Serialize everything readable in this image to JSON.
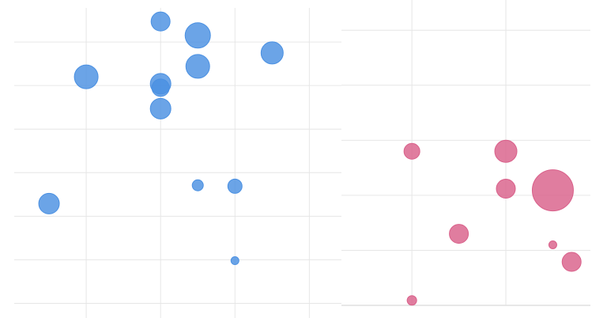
{
  "chart_data": [
    {
      "type": "scatter",
      "x": [
        2,
        2.5,
        3.5,
        1,
        2,
        2,
        2.5,
        2,
        2.5,
        3,
        0.5,
        3
      ],
      "series": [
        {
          "color": "#4a90e2",
          "values": [
            6.47,
            6.15,
            5.75,
            5.2,
            5.04,
            4.95,
            5.44,
            4.47,
            2.71,
            2.69,
            2.29,
            0.98
          ],
          "sizes": [
            12,
            16,
            14,
            15,
            13,
            11,
            15,
            13,
            7,
            9,
            13,
            5
          ]
        }
      ],
      "xlim": [
        0,
        4.4
      ],
      "ylim": [
        -0.3,
        7
      ],
      "xticks": [
        1,
        2,
        3,
        4
      ],
      "yticks": [
        0,
        1,
        2,
        3,
        4,
        5,
        6
      ],
      "grid": true
    },
    {
      "type": "scatter",
      "x": [
        1,
        2,
        2,
        2.5,
        1.5,
        2.5,
        2.7,
        1
      ],
      "series": [
        {
          "color": "#d9608a",
          "values": [
            2.8,
            2.8,
            2.12,
            2.09,
            1.3,
            1.1,
            0.79,
            0.09
          ],
          "sizes": [
            10,
            14,
            12,
            26,
            12,
            5,
            12,
            6
          ]
        }
      ],
      "xlim": [
        0.25,
        2.9
      ],
      "ylim": [
        0,
        5.55
      ],
      "xticks": [
        1,
        2
      ],
      "yticks": [
        0,
        1,
        2,
        3,
        4,
        5
      ],
      "grid": true
    }
  ]
}
